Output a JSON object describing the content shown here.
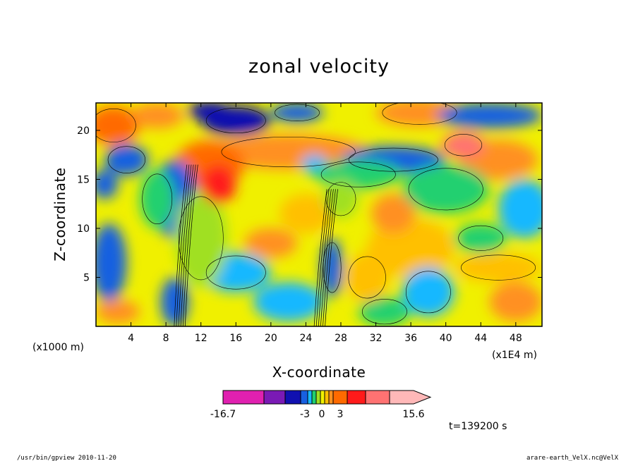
{
  "chart_data": {
    "type": "heatmap",
    "title": "zonal velocity",
    "xlabel": "X-coordinate",
    "ylabel": "Z-coordinate",
    "x_unit": "(x1E4 m)",
    "z_unit": "(x1000 m)",
    "x_ticks": [
      "4",
      "8",
      "12",
      "16",
      "20",
      "24",
      "28",
      "32",
      "36",
      "40",
      "44",
      "48"
    ],
    "z_ticks": [
      "5",
      "10",
      "15",
      "20"
    ],
    "xlim": [
      0,
      51
    ],
    "zlim": [
      0,
      22.8
    ],
    "colorbar": {
      "labels": [
        "-16.7",
        "-3",
        "0",
        "3",
        "15.6"
      ],
      "min": -16.7,
      "max": 15.6,
      "colors": [
        "#e020b0",
        "#7a1ab5",
        "#1010b0",
        "#1860e0",
        "#18b8ff",
        "#20d070",
        "#a0e020",
        "#f0f000",
        "#ffc000",
        "#ff9020",
        "#ff6a00",
        "#ff1a1a",
        "#ff7272",
        "#ffb8b8"
      ]
    },
    "annotation": "t=139200 s",
    "footer_left": "/usr/bin/gpview   2010-11-20",
    "footer_right": "arare-earth_VelX.nc@VelX"
  }
}
